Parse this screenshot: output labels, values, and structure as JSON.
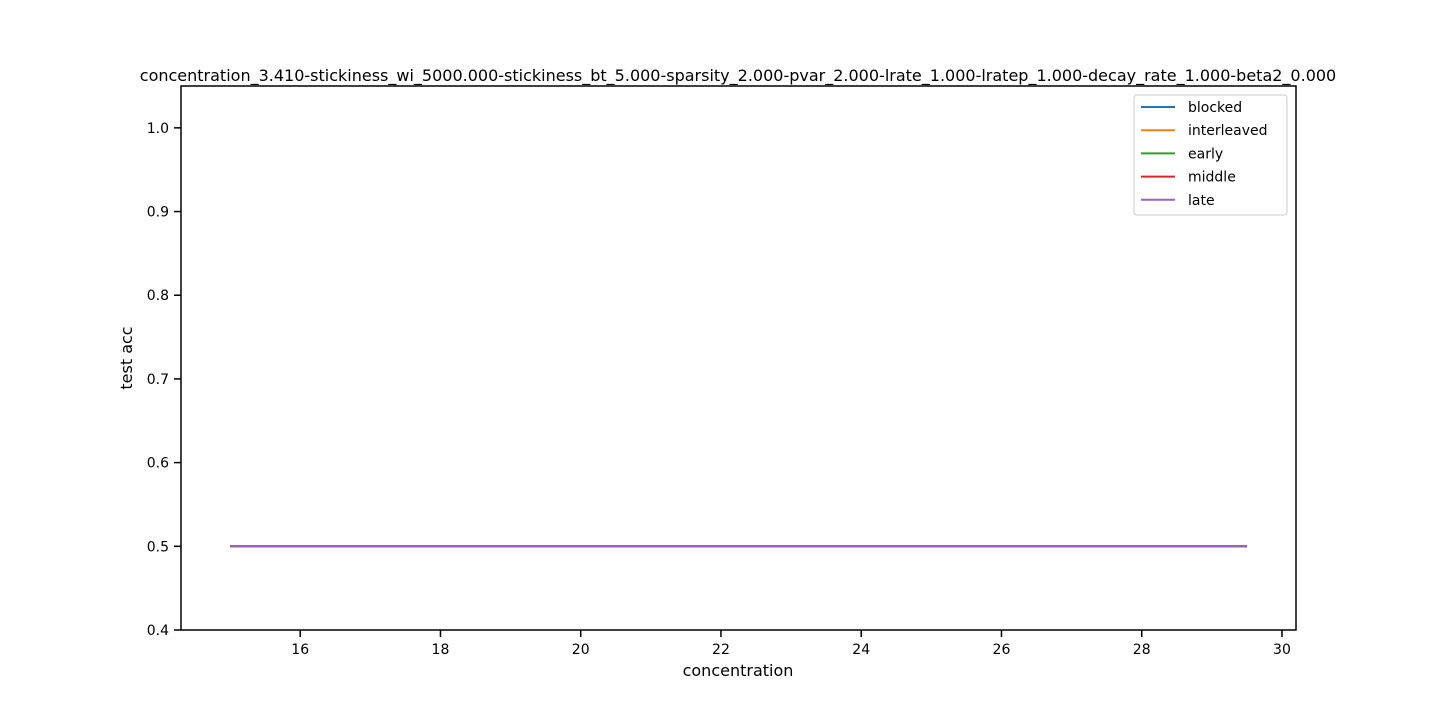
{
  "chart_data": {
    "type": "line",
    "title": "concentration_3.410-stickiness_wi_5000.000-stickiness_bt_5.000-sparsity_2.000-pvar_2.000-lrate_1.000-lratep_1.000-decay_rate_1.000-beta2_0.000",
    "xlabel": "concentration",
    "ylabel": "test acc",
    "xlim": [
      14.3,
      30.2
    ],
    "ylim": [
      0.4,
      1.05
    ],
    "xticks": [
      16,
      18,
      20,
      22,
      24,
      26,
      28,
      30
    ],
    "yticks": [
      0.4,
      0.5,
      0.6,
      0.7,
      0.8,
      0.9,
      1.0
    ],
    "xtick_labels": [
      "16",
      "18",
      "20",
      "22",
      "24",
      "26",
      "28",
      "30"
    ],
    "ytick_labels": [
      "0.4",
      "0.5",
      "0.6",
      "0.7",
      "0.8",
      "0.9",
      "1.0"
    ],
    "grid": false,
    "legend_position": "top-right",
    "x": [
      15.0,
      15.5,
      16.0,
      16.5,
      17.0,
      17.5,
      18.0,
      18.5,
      19.0,
      19.5,
      20.0,
      20.5,
      21.0,
      21.5,
      22.0,
      22.5,
      23.0,
      23.5,
      24.0,
      24.5,
      25.0,
      25.5,
      26.0,
      26.5,
      27.0,
      27.5,
      28.0,
      28.5,
      29.0,
      29.5
    ],
    "series": [
      {
        "name": "blocked",
        "color": "#1f77b4",
        "values": [
          0.5,
          0.5,
          0.5,
          0.5,
          0.5,
          0.5,
          0.5,
          0.5,
          0.5,
          0.5,
          0.5,
          0.5,
          0.5,
          0.5,
          0.5,
          0.5,
          0.5,
          0.5,
          0.5,
          0.5,
          0.5,
          0.5,
          0.5,
          0.5,
          0.5,
          0.5,
          0.5,
          0.5,
          0.5,
          0.5
        ]
      },
      {
        "name": "interleaved",
        "color": "#ff7f0e",
        "values": [
          0.5,
          0.5,
          0.5,
          0.5,
          0.5,
          0.5,
          0.5,
          0.5,
          0.5,
          0.5,
          0.5,
          0.5,
          0.5,
          0.5,
          0.5,
          0.5,
          0.5,
          0.5,
          0.5,
          0.5,
          0.5,
          0.5,
          0.5,
          0.5,
          0.5,
          0.5,
          0.5,
          0.5,
          0.5,
          0.5
        ]
      },
      {
        "name": "early",
        "color": "#2ca02c",
        "values": [
          0.5,
          0.5,
          0.5,
          0.5,
          0.5,
          0.5,
          0.5,
          0.5,
          0.5,
          0.5,
          0.5,
          0.5,
          0.5,
          0.5,
          0.5,
          0.5,
          0.5,
          0.5,
          0.5,
          0.5,
          0.5,
          0.5,
          0.5,
          0.5,
          0.5,
          0.5,
          0.5,
          0.5,
          0.5,
          0.5
        ]
      },
      {
        "name": "middle",
        "color": "#d62728",
        "values": [
          0.5,
          0.5,
          0.5,
          0.5,
          0.5,
          0.5,
          0.5,
          0.5,
          0.5,
          0.5,
          0.5,
          0.5,
          0.5,
          0.5,
          0.5,
          0.5,
          0.5,
          0.5,
          0.5,
          0.5,
          0.5,
          0.5,
          0.5,
          0.5,
          0.5,
          0.5,
          0.5,
          0.5,
          0.5,
          0.5
        ]
      },
      {
        "name": "late",
        "color": "#9467bd",
        "values": [
          0.5,
          0.5,
          0.5,
          0.5,
          0.5,
          0.5,
          0.5,
          0.5,
          0.5,
          0.5,
          0.5,
          0.5,
          0.5,
          0.5,
          0.5,
          0.5,
          0.5,
          0.5,
          0.5,
          0.5,
          0.5,
          0.5,
          0.5,
          0.5,
          0.5,
          0.5,
          0.5,
          0.5,
          0.5,
          0.5
        ]
      }
    ]
  }
}
